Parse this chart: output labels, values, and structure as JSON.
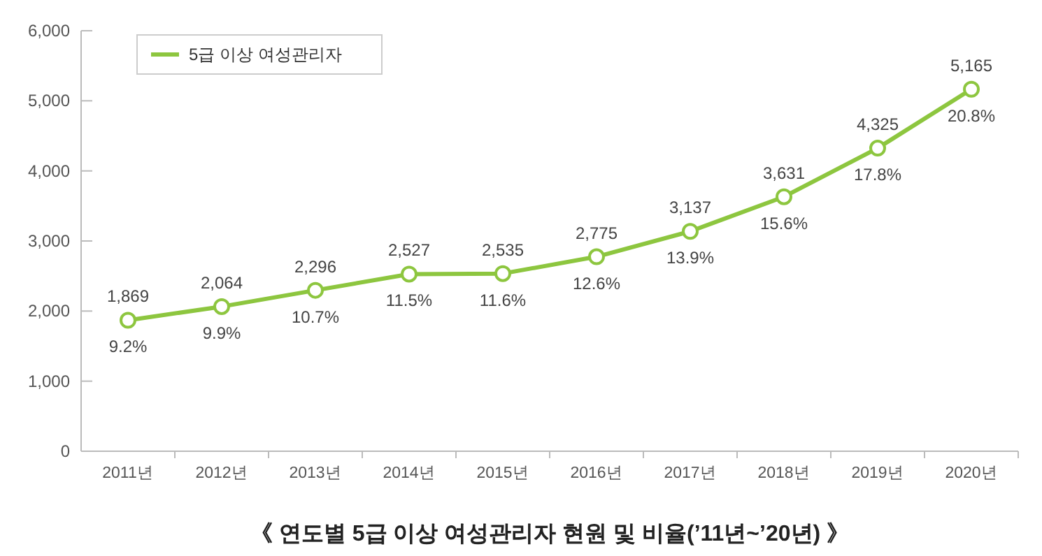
{
  "chart_data": {
    "type": "line",
    "title": "《 연도별 5급 이상 여성관리자 현원 및 비율(’11년~’20년) 》",
    "categories": [
      "2011년",
      "2012년",
      "2013년",
      "2014년",
      "2015년",
      "2016년",
      "2017년",
      "2018년",
      "2019년",
      "2020년"
    ],
    "series": [
      {
        "name": "5급 이상 여성관리자",
        "color": "#8dc63f",
        "values": [
          1869,
          2064,
          2296,
          2527,
          2535,
          2775,
          3137,
          3631,
          4325,
          5165
        ],
        "value_labels": [
          "1,869",
          "2,064",
          "2,296",
          "2,527",
          "2,535",
          "2,775",
          "3,137",
          "3,631",
          "4,325",
          "5,165"
        ]
      }
    ],
    "annotations": [
      {
        "text": "9.2%",
        "x": "2011년",
        "y": 1869
      },
      {
        "text": "9.9%",
        "x": "2012년",
        "y": 2064
      },
      {
        "text": "10.7%",
        "x": "2013년",
        "y": 2296
      },
      {
        "text": "11.5%",
        "x": "2014년",
        "y": 2527
      },
      {
        "text": "11.6%",
        "x": "2015년",
        "y": 2535
      },
      {
        "text": "12.6%",
        "x": "2016년",
        "y": 2775
      },
      {
        "text": "13.9%",
        "x": "2017년",
        "y": 3137
      },
      {
        "text": "15.6%",
        "x": "2018년",
        "y": 3631
      },
      {
        "text": "17.8%",
        "x": "2019년",
        "y": 4325
      },
      {
        "text": "20.8%",
        "x": "2020년",
        "y": 5165
      }
    ],
    "ylim": [
      0,
      6000
    ],
    "yticks": [
      {
        "value": 0,
        "label": "0"
      },
      {
        "value": 1000,
        "label": "1,000"
      },
      {
        "value": 2000,
        "label": "2,000"
      },
      {
        "value": 3000,
        "label": "3,000"
      },
      {
        "value": 4000,
        "label": "4,000"
      },
      {
        "value": 5000,
        "label": "5,000"
      },
      {
        "value": 6000,
        "label": "6,000"
      }
    ],
    "grid": false,
    "legend": "top left",
    "marker": "circle",
    "line_style": "solid"
  }
}
